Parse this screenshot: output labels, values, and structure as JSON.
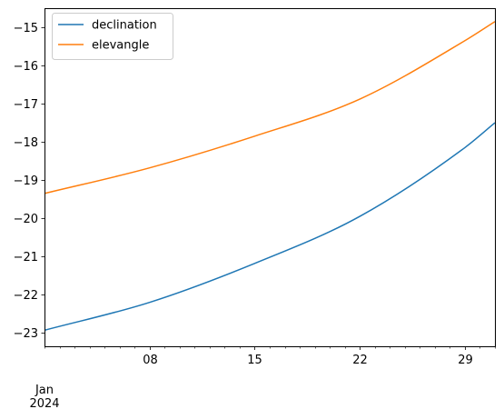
{
  "chart_data": {
    "type": "line",
    "x_axis": {
      "type": "date",
      "range": [
        "2024-01-01",
        "2024-01-31"
      ],
      "major_ticks": [
        {
          "date": "2024-01-08",
          "label": "08"
        },
        {
          "date": "2024-01-15",
          "label": "15"
        },
        {
          "date": "2024-01-22",
          "label": "22"
        },
        {
          "date": "2024-01-29",
          "label": "29"
        }
      ],
      "minor_ticks": "daily",
      "start_label": {
        "line1": "Jan",
        "line2": "2024"
      }
    },
    "y_axis": {
      "range": [
        -23.35,
        -14.5
      ],
      "ticks": [
        -23,
        -22,
        -21,
        -20,
        -19,
        -18,
        -17,
        -16,
        -15
      ],
      "tick_labels": [
        "−23",
        "−22",
        "−21",
        "−20",
        "−19",
        "−18",
        "−17",
        "−16",
        "−15"
      ]
    },
    "legend": {
      "placement": "upper-left"
    },
    "series": [
      {
        "name": "declination",
        "color": "#1f77b4",
        "points": [
          [
            "2024-01-01",
            -22.93
          ],
          [
            "2024-01-08",
            -22.2
          ],
          [
            "2024-01-15",
            -21.18
          ],
          [
            "2024-01-22",
            -19.95
          ],
          [
            "2024-01-29",
            -18.15
          ],
          [
            "2024-01-31",
            -17.5
          ]
        ]
      },
      {
        "name": "elevangle",
        "color": "#ff7f0e",
        "points": [
          [
            "2024-01-01",
            -19.35
          ],
          [
            "2024-01-08",
            -18.68
          ],
          [
            "2024-01-15",
            -17.85
          ],
          [
            "2024-01-22",
            -16.88
          ],
          [
            "2024-01-29",
            -15.35
          ],
          [
            "2024-01-31",
            -14.85
          ]
        ]
      }
    ]
  }
}
